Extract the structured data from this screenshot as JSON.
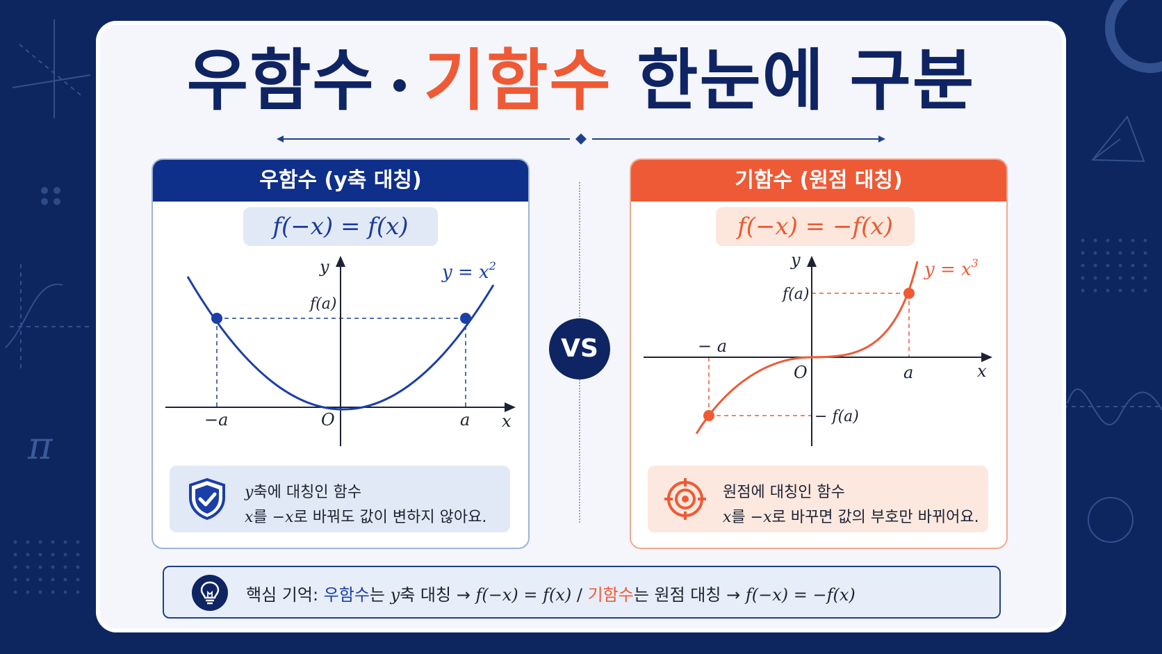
{
  "title": {
    "part1": "우함수",
    "part2": "기함수",
    "part3": "한눈에 구분"
  },
  "even": {
    "header": "우함수 (y축 대칭)",
    "formula": "f(−x) = f(x)",
    "curve_label": "y = x",
    "curve_label_exp": "2",
    "labels": {
      "y": "y",
      "x": "x",
      "origin": "O",
      "fa": "f(a)",
      "neg_a": "−a",
      "a": "a"
    },
    "note_var": "y",
    "note_line1": "축에 대칭인 함수",
    "note_line2_a": "x",
    "note_line2_b": "를 ",
    "note_line2_c": "−x",
    "note_line2_d": "로 바꿔도 값이 변하지 않아요.",
    "icon": "shield-check-icon",
    "color": "#0e2f8a"
  },
  "odd": {
    "header": "기함수 (원점 대칭)",
    "formula": "f(−x) = −f(x)",
    "curve_label": "y = x",
    "curve_label_exp": "3",
    "labels": {
      "y": "y",
      "x": "x",
      "origin": "O",
      "fa": "f(a)",
      "neg_fa": "− f(a)",
      "neg_a": "− a",
      "a": "a"
    },
    "note_line1": "원점에 대칭인 함수",
    "note_line2_a": "x",
    "note_line2_b": "를 ",
    "note_line2_c": "−x",
    "note_line2_d": "로 바꾸면 값의 부호만 바뀌어요.",
    "icon": "target-icon",
    "color": "#ee5a35"
  },
  "vs_label": "VS",
  "summary": {
    "lead": "핵심 기억: ",
    "even_word": "우함수",
    "even_rest": "는 ",
    "even_axis": "y",
    "even_axis_rest": "축 대칭 → ",
    "even_formula": "f(−x) = f(x)",
    "separator": "  /  ",
    "odd_word": "기함수",
    "odd_rest": "는 원점 대칭 → ",
    "odd_formula": "f(−x) = −f(x)",
    "icon": "lightbulb-icon"
  }
}
